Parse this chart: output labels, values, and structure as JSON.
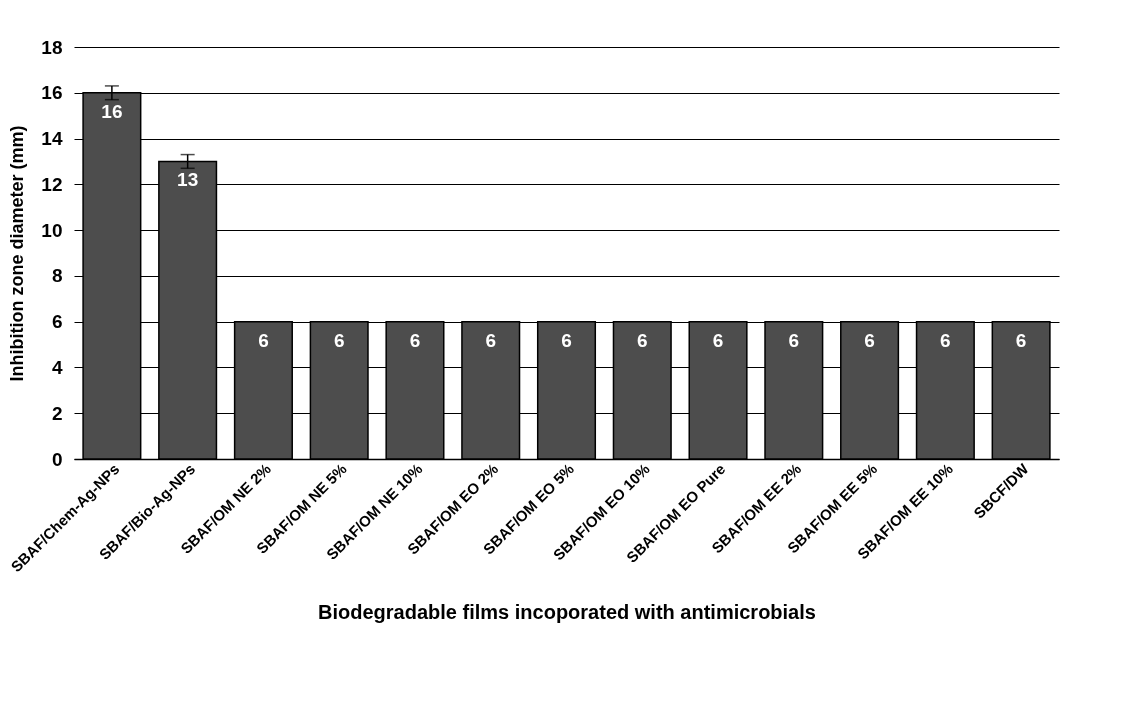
{
  "chart_data": {
    "type": "bar",
    "xlabel": "Biodegradable films incoporated with antimicrobials",
    "ylabel": "Inhibition zone diameter (mm)",
    "categories": [
      "SBAF/Chem-Ag-NPs",
      "SBAF/Bio-Ag-NPs",
      "SBAF/OM NE 2%",
      "SBAF/OM NE 5%",
      "SBAF/OM NE 10%",
      "SBAF/OM EO 2%",
      "SBAF/OM EO 5%",
      "SBAF/OM EO 10%",
      "SBAF/OM EO Pure",
      "SBAF/OM EE 2%",
      "SBAF/OM EE 5%",
      "SBAF/OM EE 10%",
      "SBCF/DW"
    ],
    "values": [
      16,
      13,
      6,
      6,
      6,
      6,
      6,
      6,
      6,
      6,
      6,
      6,
      6
    ],
    "errors": [
      0.3,
      0.3,
      null,
      null,
      null,
      null,
      null,
      null,
      null,
      null,
      null,
      null,
      null
    ],
    "color": "#4d4d4d",
    "ylim": [
      0,
      18
    ],
    "yticks": [
      0,
      2,
      4,
      6,
      8,
      10,
      12,
      14,
      16,
      18
    ],
    "grid": "y",
    "data_labels": true
  }
}
